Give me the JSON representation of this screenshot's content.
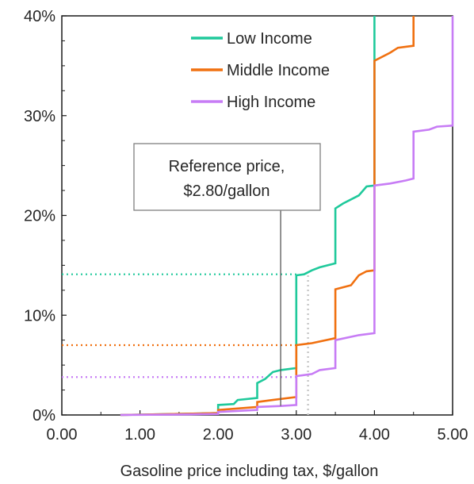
{
  "chart_data": {
    "type": "line",
    "xlabel": "Gasoline price including tax, $/gallon",
    "ylabel": "",
    "xlim": [
      0,
      5
    ],
    "ylim": [
      0,
      40
    ],
    "x_ticks": [
      0,
      1,
      2,
      3,
      4,
      5
    ],
    "x_tick_labels": [
      "0.00",
      "1.00",
      "2.00",
      "3.00",
      "4.00",
      "5.00"
    ],
    "y_ticks": [
      0,
      10,
      20,
      30,
      40
    ],
    "y_tick_labels": [
      "0%",
      "10%",
      "20%",
      "30%",
      "40%"
    ],
    "grid": false,
    "legend_position": "top-right",
    "series": [
      {
        "name": "Low Income",
        "color": "#1fc99b",
        "points": [
          [
            0.75,
            0.0
          ],
          [
            1.5,
            0.1
          ],
          [
            2.0,
            0.2
          ],
          [
            2.0,
            1.0
          ],
          [
            2.2,
            1.1
          ],
          [
            2.25,
            1.5
          ],
          [
            2.5,
            1.7
          ],
          [
            2.5,
            3.2
          ],
          [
            2.6,
            3.6
          ],
          [
            2.7,
            4.3
          ],
          [
            2.8,
            4.5
          ],
          [
            3.0,
            4.7
          ],
          [
            3.0,
            14.0
          ],
          [
            3.1,
            14.1
          ],
          [
            3.2,
            14.5
          ],
          [
            3.3,
            14.8
          ],
          [
            3.5,
            15.2
          ],
          [
            3.5,
            20.7
          ],
          [
            3.6,
            21.2
          ],
          [
            3.8,
            22.0
          ],
          [
            3.9,
            22.9
          ],
          [
            4.0,
            23.0
          ],
          [
            4.0,
            40.0
          ]
        ],
        "reference_value": 14.1
      },
      {
        "name": "Middle Income",
        "color": "#f07010",
        "points": [
          [
            0.75,
            0.0
          ],
          [
            1.5,
            0.1
          ],
          [
            2.0,
            0.2
          ],
          [
            2.0,
            0.5
          ],
          [
            2.5,
            0.8
          ],
          [
            2.5,
            1.3
          ],
          [
            2.7,
            1.5
          ],
          [
            3.0,
            1.8
          ],
          [
            3.0,
            7.0
          ],
          [
            3.2,
            7.2
          ],
          [
            3.5,
            7.7
          ],
          [
            3.5,
            12.6
          ],
          [
            3.7,
            13.0
          ],
          [
            3.8,
            14.0
          ],
          [
            3.9,
            14.4
          ],
          [
            4.0,
            14.5
          ],
          [
            4.0,
            35.5
          ],
          [
            4.2,
            36.3
          ],
          [
            4.3,
            36.8
          ],
          [
            4.5,
            37.0
          ],
          [
            4.5,
            40.0
          ]
        ],
        "reference_value": 7.0
      },
      {
        "name": "High Income",
        "color": "#c77cf5",
        "points": [
          [
            0.75,
            0.0
          ],
          [
            1.5,
            0.05
          ],
          [
            2.0,
            0.1
          ],
          [
            2.0,
            0.3
          ],
          [
            2.5,
            0.5
          ],
          [
            2.5,
            0.8
          ],
          [
            2.8,
            0.9
          ],
          [
            3.0,
            1.0
          ],
          [
            3.0,
            3.9
          ],
          [
            3.2,
            4.1
          ],
          [
            3.3,
            4.5
          ],
          [
            3.5,
            4.7
          ],
          [
            3.5,
            7.5
          ],
          [
            3.8,
            8.0
          ],
          [
            4.0,
            8.2
          ],
          [
            4.0,
            23.0
          ],
          [
            4.2,
            23.2
          ],
          [
            4.4,
            23.5
          ],
          [
            4.5,
            23.7
          ],
          [
            4.5,
            28.4
          ],
          [
            4.7,
            28.6
          ],
          [
            4.8,
            28.9
          ],
          [
            5.0,
            29.0
          ],
          [
            5.0,
            40.0
          ]
        ],
        "reference_value": 3.8
      }
    ],
    "annotations": [
      {
        "text_line1": "Reference price,",
        "text_line2": "$2.80/gallon",
        "x": 2.8,
        "target_y": 0.9
      }
    ],
    "vertical_markers": [
      {
        "x": 3.15,
        "style": "dotted",
        "color": "#c8c8c8"
      }
    ]
  }
}
